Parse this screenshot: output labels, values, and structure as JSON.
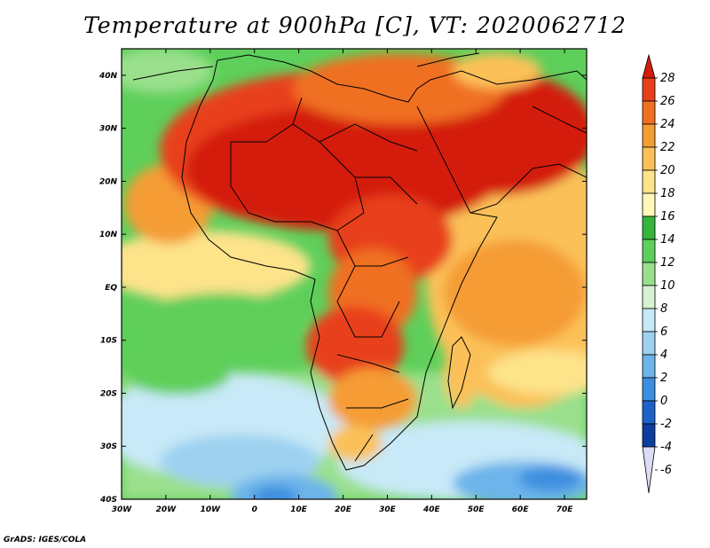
{
  "title": "Temperature at 900hPa [C], VT: 2020062712",
  "credit": "GrADS: IGES/COLA",
  "map": {
    "lon_labels": [
      "30W",
      "20W",
      "10W",
      "0",
      "10E",
      "20E",
      "30E",
      "40E",
      "50E",
      "60E",
      "70E"
    ],
    "lat_labels": [
      "40N",
      "30N",
      "20N",
      "10N",
      "EQ",
      "10S",
      "20S",
      "30S",
      "40S"
    ],
    "lon_range": [
      -30,
      75
    ],
    "lat_range": [
      -40,
      45
    ]
  },
  "colorbar": {
    "labels": [
      "28",
      "26",
      "24",
      "22",
      "20",
      "18",
      "16",
      "14",
      "12",
      "10",
      "8",
      "6",
      "4",
      "2",
      "0",
      "-2",
      "-4",
      "-6"
    ],
    "colors": [
      "#d41c0c",
      "#e8401a",
      "#f07020",
      "#f59c35",
      "#fbc158",
      "#fde38a",
      "#fdf8b8",
      "#36b43c",
      "#5ecf5a",
      "#9ae08c",
      "#d6f2d0",
      "#c8e9f7",
      "#9ed1f0",
      "#6cb4ea",
      "#3c8fe0",
      "#1d62c9",
      "#0d3d9e",
      "#0a1f6b"
    ]
  }
}
